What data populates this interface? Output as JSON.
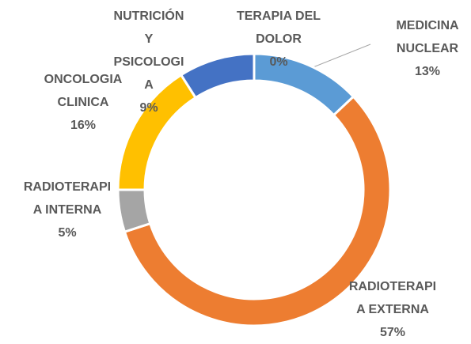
{
  "chart_data": {
    "type": "donut",
    "categories": [
      "TERAPIA DEL DOLOR",
      "MEDICINA NUCLEAR",
      "RADIOTERAPIA EXTERNA",
      "RADIOTERAPIA INTERNA",
      "ONCOLOGIA CLINICA",
      "NUTRICIÓN Y PSICOLOGIA"
    ],
    "values": [
      0,
      13,
      57,
      5,
      16,
      9
    ],
    "value_labels": [
      "0%",
      "13%",
      "57%",
      "5%",
      "16%",
      "9%"
    ],
    "colors": [
      "#70ad47",
      "#5b9bd5",
      "#ed7d31",
      "#a5a5a5",
      "#ffc000",
      "#4472c4"
    ]
  }
}
